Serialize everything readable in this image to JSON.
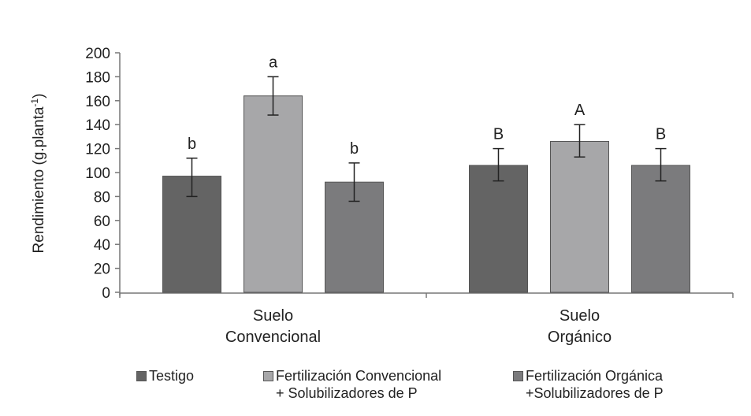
{
  "chart_data": {
    "type": "bar",
    "ylabel": "Rendimiento (g.planta",
    "ylabel_superscript": "-1",
    "ylabel_close": ")",
    "ylim": [
      0,
      200
    ],
    "yticks": [
      0,
      20,
      40,
      60,
      80,
      100,
      120,
      140,
      160,
      180,
      200
    ],
    "grid": false,
    "legend_position": "bottom",
    "categories": [
      {
        "line1": "Suelo",
        "line2": "Convencional"
      },
      {
        "line1": "Suelo",
        "line2": "Orgánico"
      }
    ],
    "series": [
      {
        "name": "Testigo",
        "name_line2": "",
        "color": "#646464",
        "values": [
          97,
          106
        ],
        "err_low": [
          80,
          93
        ],
        "err_high": [
          112,
          120
        ],
        "letters": [
          "b",
          "B"
        ]
      },
      {
        "name": "Fertilización Convencional",
        "name_line2": "+ Solubilizadores de P",
        "color": "#a7a7a9",
        "values": [
          164,
          126
        ],
        "err_low": [
          148,
          113
        ],
        "err_high": [
          180,
          140
        ],
        "letters": [
          "a",
          "A"
        ]
      },
      {
        "name": "Fertilización Orgánica",
        "name_line2": "+Solubilizadores de P",
        "color": "#7b7b7d",
        "values": [
          92,
          106
        ],
        "err_low": [
          76,
          93
        ],
        "err_high": [
          108,
          120
        ],
        "letters": [
          "b",
          "B"
        ]
      }
    ]
  }
}
